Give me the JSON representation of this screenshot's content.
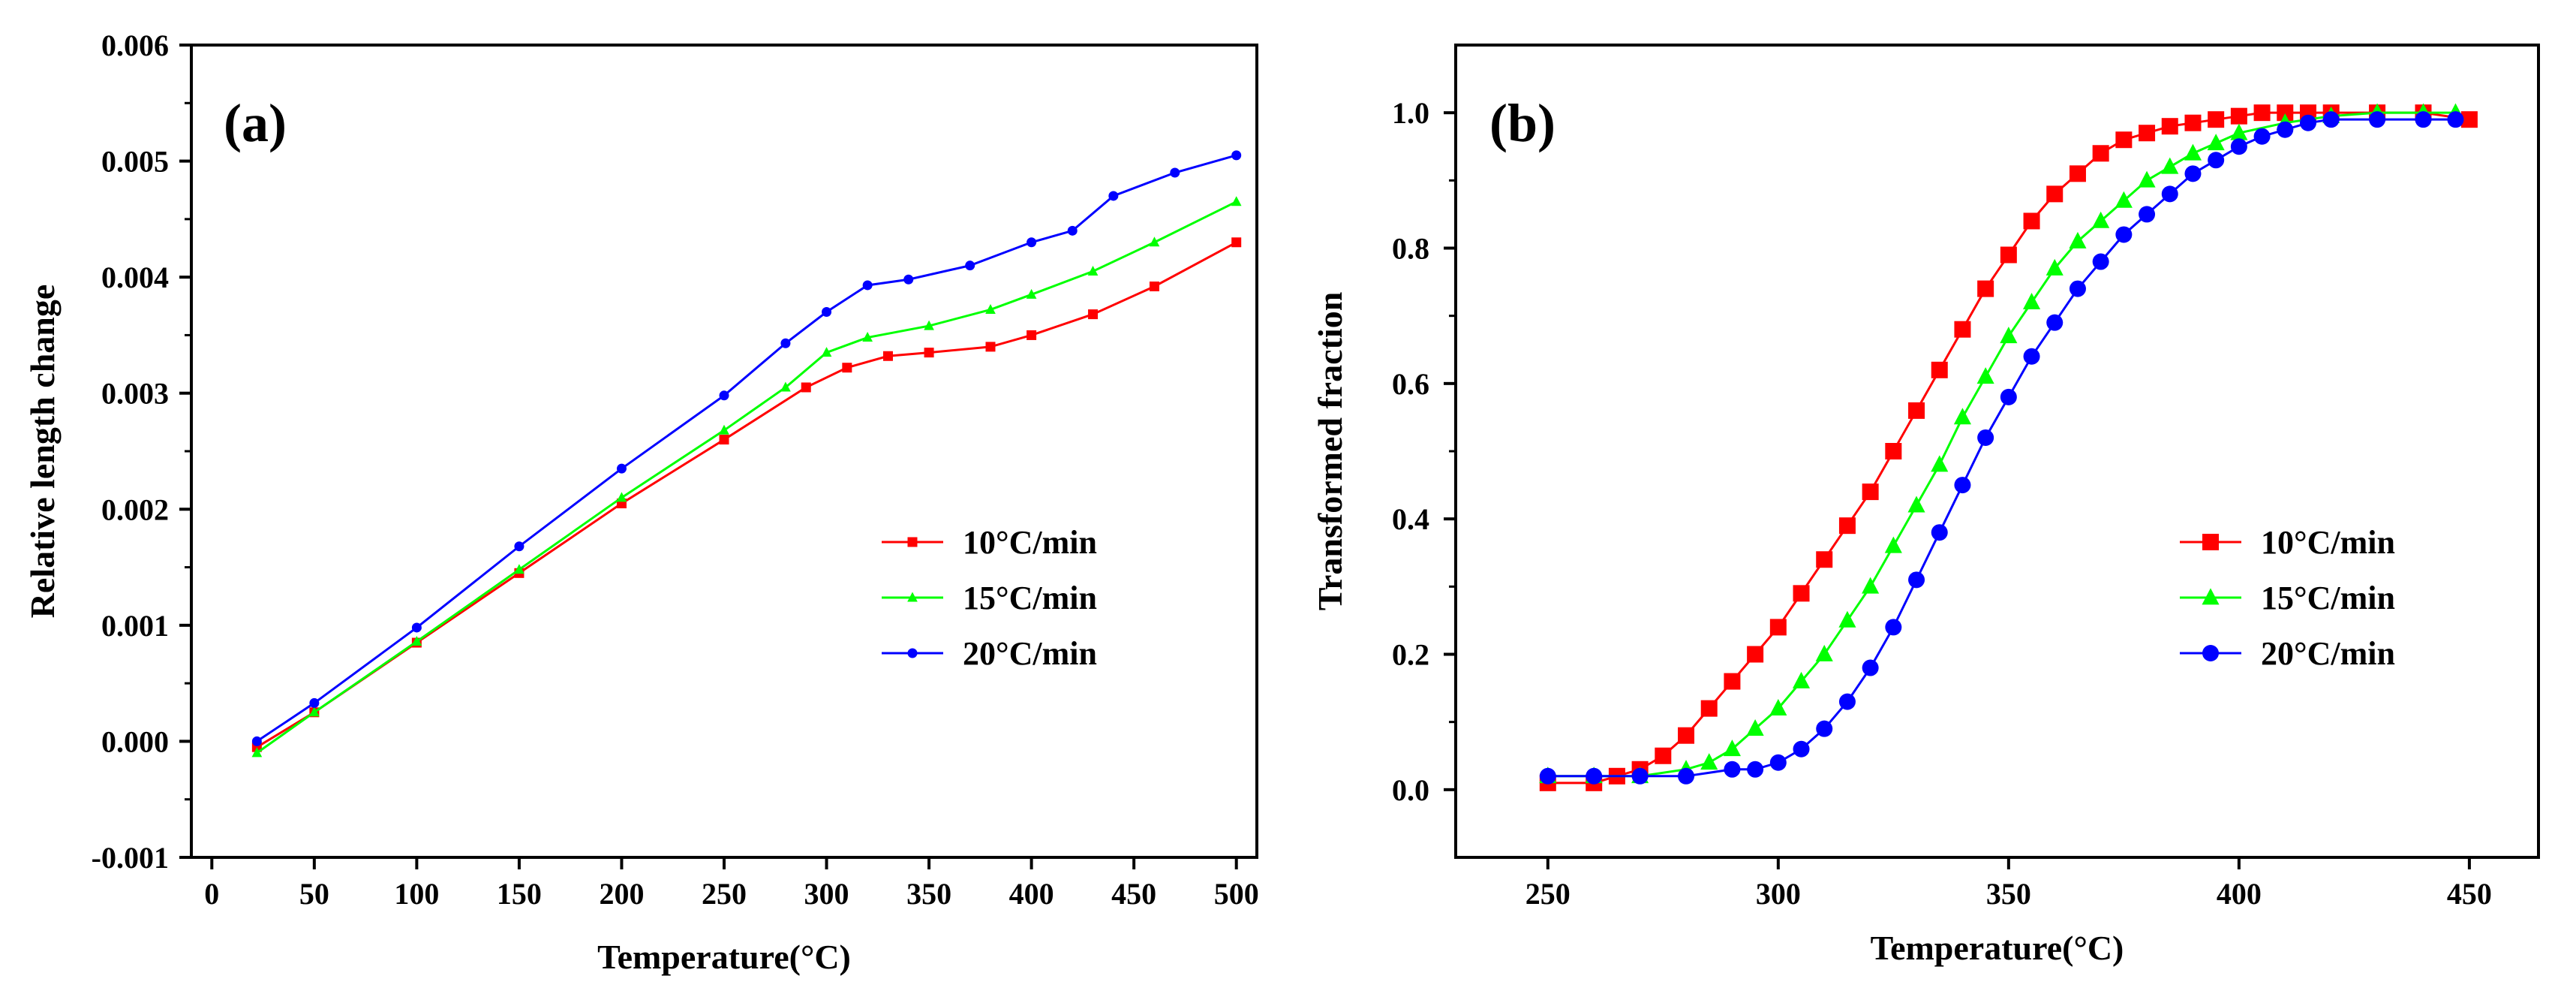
{
  "chart_data": [
    {
      "type": "line",
      "panel_label": "(a)",
      "title": "",
      "xlabel": "Temperature(°C)",
      "ylabel": "Relative length change",
      "xlim": [
        -10,
        510
      ],
      "ylim": [
        -0.001,
        0.006
      ],
      "xticks": [
        0,
        50,
        100,
        150,
        200,
        250,
        300,
        350,
        400,
        450,
        500
      ],
      "xtick_labels": [
        "0",
        "50",
        "100",
        "150",
        "200",
        "250",
        "300",
        "350",
        "400",
        "450",
        "500"
      ],
      "yticks": [
        -0.001,
        0.0,
        0.001,
        0.002,
        0.003,
        0.004,
        0.005,
        0.006
      ],
      "ytick_labels": [
        "-0.001",
        "0.000",
        "0.001",
        "0.002",
        "0.003",
        "0.004",
        "0.005",
        "0.006"
      ],
      "legend_position": "center-right",
      "series": [
        {
          "name": "10°C/min",
          "color": "#ff0000",
          "marker": "square",
          "x": [
            22,
            50,
            100,
            150,
            200,
            250,
            290,
            310,
            330,
            350,
            380,
            400,
            430,
            460,
            500
          ],
          "y": [
            -5e-05,
            0.00025,
            0.00085,
            0.00145,
            0.00205,
            0.0026,
            0.00305,
            0.00322,
            0.00332,
            0.00335,
            0.0034,
            0.0035,
            0.00368,
            0.00392,
            0.0043
          ]
        },
        {
          "name": "15°C/min",
          "color": "#00ff00",
          "marker": "triangle",
          "x": [
            22,
            50,
            100,
            150,
            200,
            250,
            280,
            300,
            320,
            350,
            380,
            400,
            430,
            460,
            500
          ],
          "y": [
            -0.0001,
            0.00025,
            0.00086,
            0.00148,
            0.0021,
            0.00268,
            0.00305,
            0.00335,
            0.00348,
            0.00358,
            0.00372,
            0.00385,
            0.00405,
            0.0043,
            0.00465
          ]
        },
        {
          "name": "20°C/min",
          "color": "#0000ff",
          "marker": "circle",
          "x": [
            22,
            50,
            100,
            150,
            200,
            250,
            280,
            300,
            320,
            340,
            370,
            400,
            420,
            440,
            470,
            500
          ],
          "y": [
            0.0,
            0.00033,
            0.00098,
            0.00168,
            0.00235,
            0.00298,
            0.00343,
            0.0037,
            0.00393,
            0.00398,
            0.0041,
            0.0043,
            0.0044,
            0.0047,
            0.0049,
            0.00505
          ]
        }
      ]
    },
    {
      "type": "line",
      "panel_label": "(b)",
      "title": "",
      "xlabel": "Temperature(°C)",
      "ylabel": "Transformed fraction",
      "xlim": [
        230,
        465
      ],
      "ylim": [
        -0.1,
        1.1
      ],
      "xticks": [
        250,
        300,
        350,
        400,
        450
      ],
      "xtick_labels": [
        "250",
        "300",
        "350",
        "400",
        "450"
      ],
      "yticks": [
        0.0,
        0.2,
        0.4,
        0.6,
        0.8,
        1.0
      ],
      "ytick_labels": [
        "0.0",
        "0.2",
        "0.4",
        "0.6",
        "0.8",
        "1.0"
      ],
      "legend_position": "center-right",
      "series": [
        {
          "name": "10°C/min",
          "color": "#ff0000",
          "marker": "square",
          "x": [
            250,
            260,
            265,
            270,
            275,
            280,
            285,
            290,
            295,
            300,
            305,
            310,
            315,
            320,
            325,
            330,
            335,
            340,
            345,
            350,
            355,
            360,
            365,
            370,
            375,
            380,
            385,
            390,
            395,
            400,
            405,
            410,
            415,
            420,
            430,
            440,
            450
          ],
          "y": [
            0.01,
            0.01,
            0.02,
            0.03,
            0.05,
            0.08,
            0.12,
            0.16,
            0.2,
            0.24,
            0.29,
            0.34,
            0.39,
            0.44,
            0.5,
            0.56,
            0.62,
            0.68,
            0.74,
            0.79,
            0.84,
            0.88,
            0.91,
            0.94,
            0.96,
            0.97,
            0.98,
            0.985,
            0.99,
            0.995,
            1.0,
            1.0,
            1.0,
            1.0,
            1.0,
            1.0,
            0.99
          ]
        },
        {
          "name": "15°C/min",
          "color": "#00ff00",
          "marker": "triangle",
          "x": [
            250,
            260,
            270,
            280,
            285,
            290,
            295,
            300,
            305,
            310,
            315,
            320,
            325,
            330,
            335,
            340,
            345,
            350,
            355,
            360,
            365,
            370,
            375,
            380,
            385,
            390,
            395,
            400,
            410,
            420,
            430,
            440,
            447
          ],
          "y": [
            0.02,
            0.02,
            0.02,
            0.03,
            0.04,
            0.06,
            0.09,
            0.12,
            0.16,
            0.2,
            0.25,
            0.3,
            0.36,
            0.42,
            0.48,
            0.55,
            0.61,
            0.67,
            0.72,
            0.77,
            0.81,
            0.84,
            0.87,
            0.9,
            0.92,
            0.94,
            0.955,
            0.97,
            0.985,
            0.995,
            1.0,
            1.0,
            1.0
          ]
        },
        {
          "name": "20°C/min",
          "color": "#0000ff",
          "marker": "circle",
          "x": [
            250,
            260,
            270,
            280,
            290,
            295,
            300,
            305,
            310,
            315,
            320,
            325,
            330,
            335,
            340,
            345,
            350,
            355,
            360,
            365,
            370,
            375,
            380,
            385,
            390,
            395,
            400,
            405,
            410,
            415,
            420,
            430,
            440,
            447
          ],
          "y": [
            0.02,
            0.02,
            0.02,
            0.02,
            0.03,
            0.03,
            0.04,
            0.06,
            0.09,
            0.13,
            0.18,
            0.24,
            0.31,
            0.38,
            0.45,
            0.52,
            0.58,
            0.64,
            0.69,
            0.74,
            0.78,
            0.82,
            0.85,
            0.88,
            0.91,
            0.93,
            0.95,
            0.965,
            0.975,
            0.985,
            0.99,
            0.99,
            0.99,
            0.99
          ]
        }
      ]
    }
  ]
}
